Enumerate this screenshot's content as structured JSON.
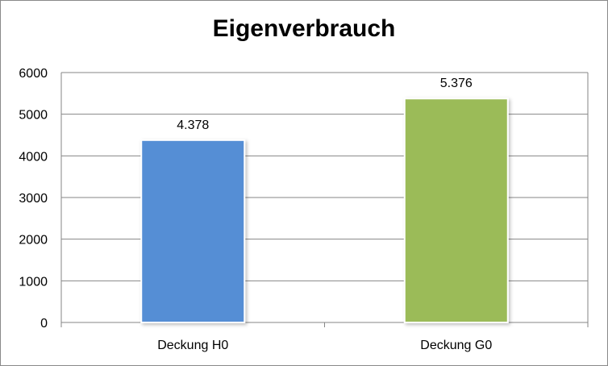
{
  "chart_data": {
    "type": "bar",
    "title": "Eigenverbrauch",
    "categories": [
      "Deckung H0",
      "Deckung G0"
    ],
    "values": [
      4378,
      5376
    ],
    "value_labels": [
      "4.378",
      "5.376"
    ],
    "colors": [
      "#558ed5",
      "#9bbb59"
    ],
    "ylim": [
      0,
      6000
    ],
    "yticks": [
      0,
      1000,
      2000,
      3000,
      4000,
      5000,
      6000
    ],
    "xlabel": "",
    "ylabel": "",
    "grid": true,
    "legend": "none"
  }
}
